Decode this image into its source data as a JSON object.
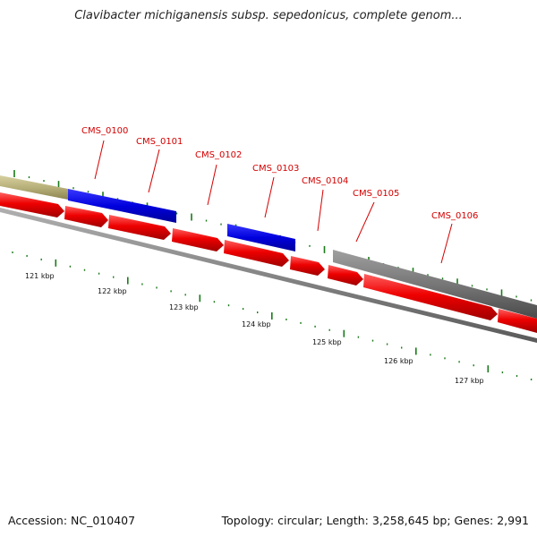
{
  "title": "Clavibacter michiganensis subsp. sepedonicus, complete genom...",
  "footer": {
    "accession": "Accession: NC_010407",
    "summary": "Topology: circular; Length: 3,258,645 bp; Genes: 2,991"
  },
  "colors": {
    "cds": "#ee0000",
    "highlight_blue": "#0000dd",
    "gene_gray": "#777777",
    "gene_olive": "#b8b07a",
    "tick_green": "#1a7a1a",
    "label_red": "#d40000",
    "backbone": "#8a8a8a"
  },
  "gene_labels": [
    "CMS_0100",
    "CMS_0101",
    "CMS_0102",
    "CMS_0103",
    "CMS_0104",
    "CMS_0105",
    "CMS_0106"
  ],
  "kbp_labels": [
    "121 kbp",
    "122 kbp",
    "123 kbp",
    "124 kbp",
    "125 kbp",
    "126 kbp",
    "127 kbp"
  ]
}
